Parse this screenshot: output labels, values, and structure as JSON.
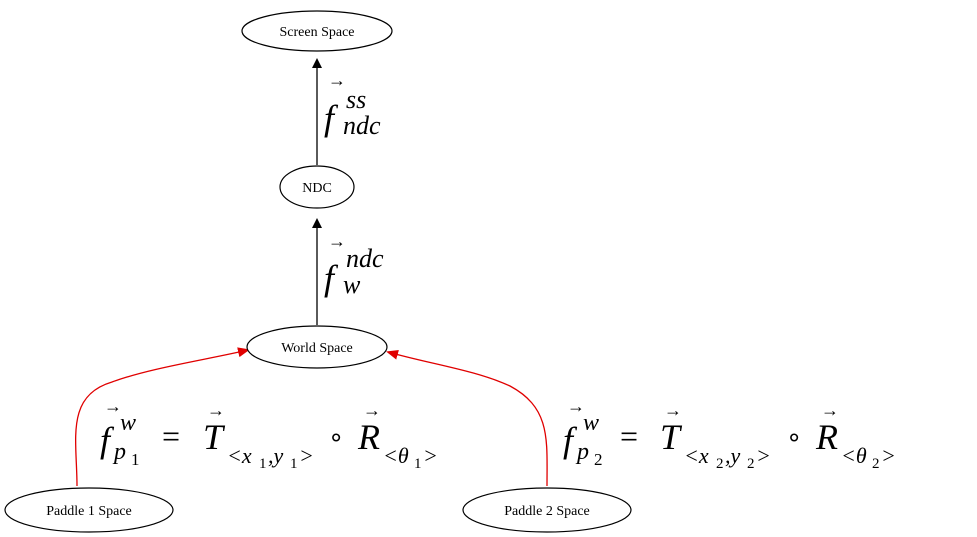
{
  "nodes": {
    "screen_space": "Screen Space",
    "ndc": "NDC",
    "world_space": "World Space",
    "paddle1_space": "Paddle 1 Space",
    "paddle2_space": "Paddle 2 Space"
  },
  "edges": {
    "ndc_to_screen": {
      "f": "f",
      "sup": "ss",
      "sub": "ndc"
    },
    "world_to_ndc": {
      "f": "f",
      "sup": "ndc",
      "sub": "w"
    },
    "paddle1_to_world": {
      "f": "f",
      "sup": "w",
      "sub": "p",
      "subsub": "1",
      "eq": "=",
      "T": "T",
      "T_sub": "<x",
      "T_sub_i1": "1",
      "T_sub_mid": ",y",
      "T_sub_i2": "1",
      "T_sub_end": ">",
      "compose": "∘",
      "R": "R",
      "R_sub": "<θ",
      "R_sub_i": "1",
      "R_sub_end": ">"
    },
    "paddle2_to_world": {
      "f": "f",
      "sup": "w",
      "sub": "p",
      "subsub": "2",
      "eq": "=",
      "T": "T",
      "T_sub": "<x",
      "T_sub_i1": "2",
      "T_sub_mid": ",y",
      "T_sub_i2": "2",
      "T_sub_end": ">",
      "compose": "∘",
      "R": "R",
      "R_sub": "<θ",
      "R_sub_i": "2",
      "R_sub_end": ">"
    }
  },
  "colors": {
    "black_edge": "#000000",
    "red_edge": "#e00000"
  }
}
